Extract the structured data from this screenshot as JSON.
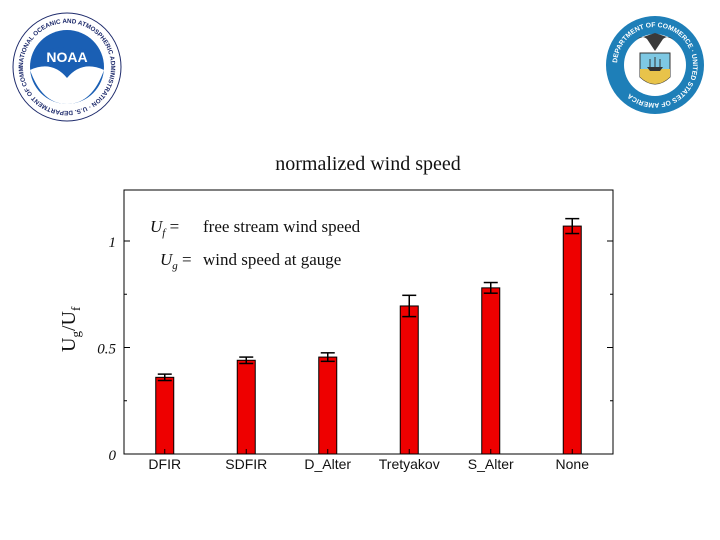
{
  "logos": {
    "noaa": {
      "ring_text": "NATIONAL OCEANIC AND ATMOSPHERIC ADMINISTRATION · U.S. DEPARTMENT OF COMMERCE",
      "center_text": "NOAA",
      "colors": {
        "sky": "#1a5fb4",
        "ring": "#ffffff",
        "bird": "#ffffff",
        "text": "#1d2a6b"
      }
    },
    "commerce": {
      "ring_text": "DEPARTMENT OF COMMERCE · UNITED STATES OF AMERICA",
      "colors": {
        "ring": "#1e7fb8",
        "inner": "#ffffff",
        "shield_sky": "#7ec8e3",
        "shield_gold": "#e8c34a"
      }
    }
  },
  "chart_data": {
    "type": "bar",
    "title": "normalized wind speed",
    "ylabel_main": "U",
    "ylabel_sub1": "g",
    "ylabel_mid": "/U",
    "ylabel_sub2": "f",
    "ylim": [
      0,
      1.2
    ],
    "yticks": [
      {
        "value": 0,
        "label": "0"
      },
      {
        "value": 0.5,
        "label": "0.5"
      },
      {
        "value": 1,
        "label": "1"
      }
    ],
    "categories": [
      "DFIR",
      "SDFIR",
      "D_Alter",
      "Tretyakov",
      "S_Alter",
      "None"
    ],
    "values": [
      0.36,
      0.44,
      0.455,
      0.695,
      0.78,
      1.07
    ],
    "errors": [
      0.015,
      0.015,
      0.02,
      0.05,
      0.025,
      0.035
    ],
    "bar_color": "#ee0000",
    "grid": false,
    "legend": {
      "line1": {
        "sym": "U",
        "sub": "f",
        "eq": " =",
        "text": "free stream wind speed"
      },
      "line2": {
        "sym": "U",
        "sub": "g",
        "eq": " =",
        "text": "wind speed at gauge"
      }
    }
  }
}
